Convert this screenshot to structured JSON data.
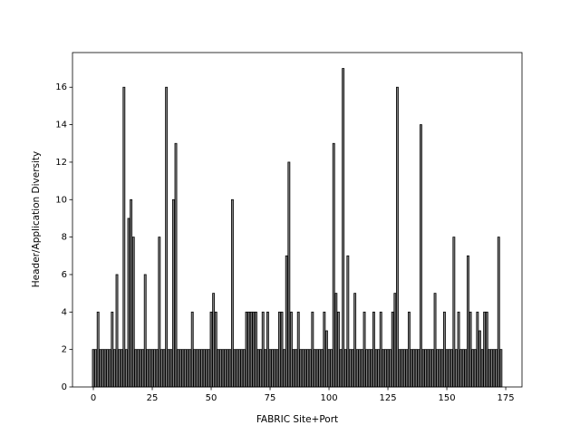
{
  "chart_data": {
    "type": "bar",
    "x_label": "FABRIC Site+Port",
    "y_label": "Header/Application Diversity",
    "x": [
      0,
      1,
      2,
      3,
      4,
      5,
      6,
      7,
      8,
      9,
      10,
      11,
      12,
      13,
      14,
      15,
      16,
      17,
      18,
      19,
      20,
      21,
      22,
      23,
      24,
      25,
      26,
      27,
      28,
      29,
      30,
      31,
      32,
      33,
      34,
      35,
      36,
      37,
      38,
      39,
      40,
      41,
      42,
      43,
      44,
      45,
      46,
      47,
      48,
      49,
      50,
      51,
      52,
      53,
      54,
      55,
      56,
      57,
      58,
      59,
      60,
      61,
      62,
      63,
      64,
      65,
      66,
      67,
      68,
      69,
      70,
      71,
      72,
      73,
      74,
      75,
      76,
      77,
      78,
      79,
      80,
      81,
      82,
      83,
      84,
      85,
      86,
      87,
      88,
      89,
      90,
      91,
      92,
      93,
      94,
      95,
      96,
      97,
      98,
      99,
      100,
      101,
      102,
      103,
      104,
      105,
      106,
      107,
      108,
      109,
      110,
      111,
      112,
      113,
      114,
      115,
      116,
      117,
      118,
      119,
      120,
      121,
      122,
      123,
      124,
      125,
      126,
      127,
      128,
      129,
      130,
      131,
      132,
      133,
      134,
      135,
      136,
      137,
      138,
      139,
      140,
      141,
      142,
      143,
      144,
      145,
      146,
      147,
      148,
      149,
      150,
      151,
      152,
      153,
      154,
      155,
      156,
      157,
      158,
      159,
      160,
      161,
      162,
      163,
      164,
      165,
      166,
      167,
      168,
      169,
      170,
      171,
      172,
      173
    ],
    "values": [
      2,
      2,
      4,
      2,
      2,
      2,
      2,
      2,
      4,
      2,
      6,
      2,
      2,
      16,
      2,
      9,
      10,
      8,
      2,
      2,
      2,
      2,
      6,
      2,
      2,
      2,
      2,
      2,
      8,
      2,
      2,
      16,
      2,
      2,
      10,
      13,
      2,
      2,
      2,
      2,
      2,
      2,
      4,
      2,
      2,
      2,
      2,
      2,
      2,
      2,
      4,
      5,
      4,
      2,
      2,
      2,
      2,
      2,
      2,
      10,
      2,
      2,
      2,
      2,
      2,
      4,
      4,
      4,
      4,
      4,
      2,
      2,
      4,
      2,
      4,
      2,
      2,
      2,
      2,
      4,
      4,
      2,
      7,
      12,
      4,
      2,
      2,
      4,
      2,
      2,
      2,
      2,
      2,
      4,
      2,
      2,
      2,
      2,
      4,
      3,
      2,
      2,
      13,
      5,
      4,
      2,
      17,
      2,
      7,
      2,
      2,
      5,
      2,
      2,
      2,
      4,
      2,
      2,
      2,
      4,
      2,
      2,
      4,
      2,
      2,
      2,
      2,
      4,
      5,
      16,
      2,
      2,
      2,
      2,
      4,
      2,
      2,
      2,
      2,
      14,
      2,
      2,
      2,
      2,
      2,
      5,
      2,
      2,
      2,
      4,
      2,
      2,
      2,
      8,
      2,
      4,
      2,
      2,
      2,
      7,
      4,
      2,
      2,
      4,
      3,
      2,
      4,
      4,
      2,
      2,
      2,
      2,
      8,
      2
    ],
    "color": "#808080",
    "edgecolor": "#000000",
    "bar_width": 0.8,
    "xlim": [
      -8.85,
      181.9
    ],
    "ylim": [
      0,
      17.85
    ],
    "xticks": [
      0,
      25,
      50,
      75,
      100,
      125,
      150,
      175
    ],
    "yticks": [
      0,
      2,
      4,
      6,
      8,
      10,
      12,
      14,
      16
    ]
  }
}
